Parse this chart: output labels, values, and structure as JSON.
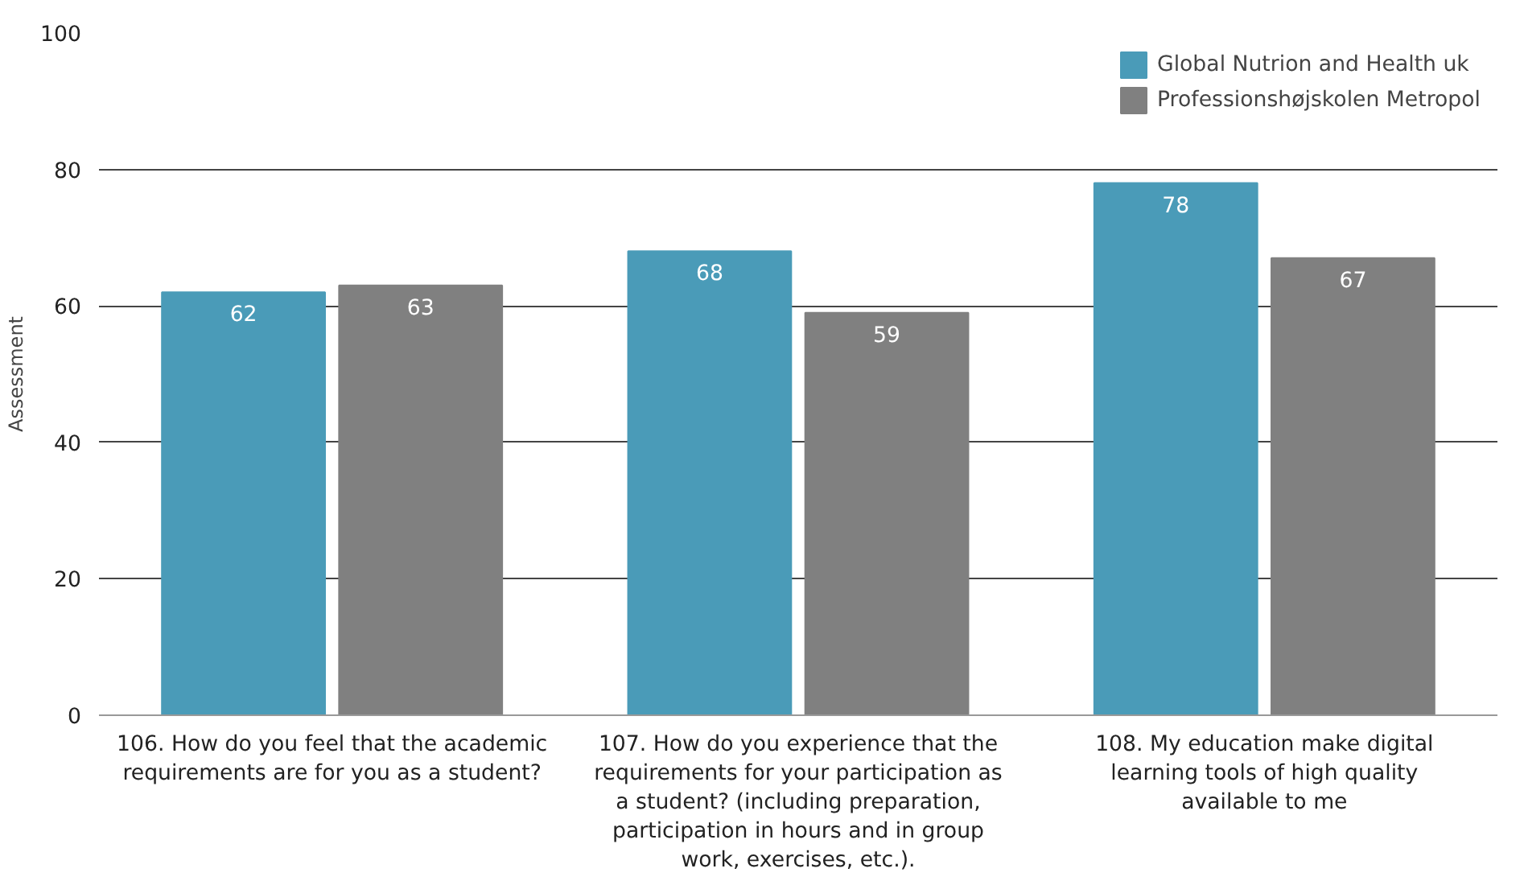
{
  "chart_data": {
    "type": "bar",
    "ylabel": "Assessment",
    "categories": [
      "106. How do you feel that the academic requirements are for you as a student?",
      "107. How do you experience that the requirements for your participation as a student? (including preparation, participation in hours and in group work, exercises, etc.).",
      "108. My education make digital learning tools of high quality available to me"
    ],
    "series": [
      {
        "name": "Global Nutrion and Health uk",
        "color": "#4a9bb8",
        "values": [
          62,
          68,
          78
        ]
      },
      {
        "name": "Professionshøjskolen Metropol",
        "color": "#808080",
        "values": [
          63,
          59,
          67
        ]
      }
    ],
    "ylim": [
      0,
      100
    ],
    "yticks": [
      0,
      20,
      40,
      60,
      80,
      100
    ],
    "grid": "y",
    "legend": "top right",
    "data_labels": true
  }
}
